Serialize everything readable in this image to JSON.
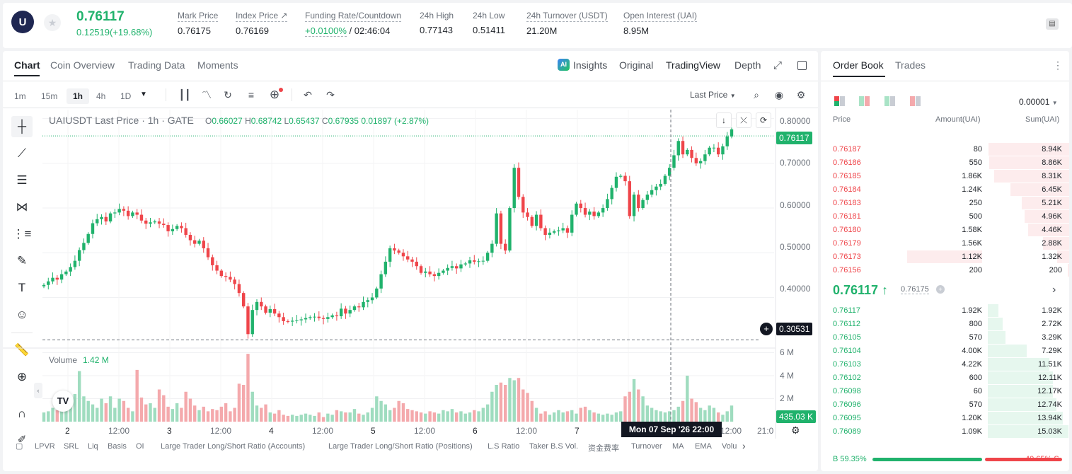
{
  "header": {
    "logo_text": "U",
    "last_price": "0.76117",
    "change": "0.12519(+19.68%)",
    "stats": [
      {
        "label": "Mark Price",
        "value": "0.76175"
      },
      {
        "label": "Index Price ↗",
        "value": "0.76169"
      },
      {
        "label": "Funding Rate/Countdown",
        "value_rate": "+0.0100%",
        "value_countdown": " / 02:46:04"
      },
      {
        "label": "24h High",
        "value": "0.77143"
      },
      {
        "label": "24h Low",
        "value": "0.51411"
      },
      {
        "label": "24h Turnover (USDT)",
        "value": "21.20M"
      },
      {
        "label": "Open Interest (UAI)",
        "value": "8.95M"
      }
    ]
  },
  "chart_tabs": [
    "Chart",
    "Coin Overview",
    "Trading Data",
    "Moments"
  ],
  "view_tabs": {
    "insights": "Insights",
    "original": "Original",
    "tradingview": "TradingView",
    "depth": "Depth"
  },
  "timeframes": [
    "1m",
    "15m",
    "1h",
    "4h",
    "1D"
  ],
  "active_timeframe": "1h",
  "price_type": "Last Price",
  "legend": {
    "title": "UAIUSDT Last Price · 1h · GATE",
    "o": "0.66027",
    "h": "0.68742",
    "l": "0.65437",
    "c": "0.67935",
    "change": "0.01897 (+2.87%)"
  },
  "volume_legend": {
    "label": "Volume",
    "value": "1.42 M"
  },
  "crosshair_label": "Mon 07 Sep '26   22:00",
  "price_tags": {
    "last": "0.76117",
    "cross": "0.30531",
    "volume": "435.03 K"
  },
  "indicators": [
    "LPVR",
    "SRL",
    "Liq",
    "Basis",
    "OI",
    "Large Trader Long/Short Ratio (Accounts)",
    "Large Trader Long/Short Ratio (Positions)",
    "L.S Ratio",
    "Taker B.S Vol.",
    "资金费率",
    "Turnover",
    "MA",
    "EMA",
    "Volu"
  ],
  "chart_data": {
    "type": "candlestick",
    "y_ticks": [
      "0.80000",
      "0.70000",
      "0.60000",
      "0.50000",
      "0.40000"
    ],
    "ylim": [
      0.29,
      0.82
    ],
    "x_ticks": [
      "2",
      "12:00",
      "3",
      "12:00",
      "4",
      "12:00",
      "5",
      "12:00",
      "6",
      "12:00",
      "7",
      "12:00",
      "21:0"
    ],
    "volume_ticks": [
      "6 M",
      "4 M",
      "2 M"
    ],
    "volume_ylim": [
      0,
      6.4
    ],
    "close_start": 0.425,
    "closes": [
      0.428,
      0.436,
      0.444,
      0.44,
      0.452,
      0.458,
      0.468,
      0.482,
      0.506,
      0.522,
      0.542,
      0.566,
      0.575,
      0.58,
      0.57,
      0.588,
      0.59,
      0.598,
      0.594,
      0.582,
      0.59,
      0.585,
      0.572,
      0.565,
      0.568,
      0.57,
      0.565,
      0.562,
      0.548,
      0.553,
      0.56,
      0.555,
      0.54,
      0.528,
      0.52,
      0.527,
      0.51,
      0.49,
      0.472,
      0.46,
      0.448,
      0.446,
      0.44,
      0.43,
      0.41,
      0.38,
      0.318,
      0.372,
      0.39,
      0.38,
      0.366,
      0.374,
      0.364,
      0.356,
      0.347,
      0.346,
      0.348,
      0.349,
      0.351,
      0.354,
      0.356,
      0.357,
      0.354,
      0.352,
      0.356,
      0.36,
      0.358,
      0.375,
      0.364,
      0.372,
      0.38,
      0.378,
      0.39,
      0.394,
      0.4,
      0.42,
      0.452,
      0.48,
      0.51,
      0.505,
      0.5,
      0.492,
      0.485,
      0.48,
      0.47,
      0.455,
      0.458,
      0.452,
      0.448,
      0.455,
      0.46,
      0.466,
      0.47,
      0.465,
      0.474,
      0.476,
      0.483,
      0.48,
      0.481,
      0.482,
      0.5,
      0.52,
      0.588,
      0.52,
      0.505,
      0.6,
      0.69,
      0.625,
      0.59,
      0.58,
      0.56,
      0.585,
      0.555,
      0.54,
      0.545,
      0.548,
      0.55,
      0.555,
      0.545,
      0.585,
      0.61,
      0.6,
      0.585,
      0.592,
      0.582,
      0.59,
      0.6,
      0.62,
      0.645,
      0.67,
      0.672,
      0.66,
      0.582,
      0.63,
      0.6,
      0.618,
      0.63,
      0.64,
      0.648,
      0.654,
      0.672,
      0.69,
      0.718,
      0.75,
      0.72,
      0.73,
      0.712,
      0.7,
      0.705,
      0.72,
      0.735,
      0.735,
      0.72,
      0.738,
      0.76,
      0.776
    ],
    "volumes": [
      0.8,
      0.9,
      1.2,
      1.0,
      1.4,
      1.6,
      1.8,
      2.4,
      4.4,
      2.2,
      1.8,
      1.5,
      1.2,
      2.0,
      1.6,
      2.2,
      1.2,
      2.0,
      1.8,
      1.2,
      0.9,
      4.5,
      2.1,
      1.5,
      1.6,
      1.2,
      2.8,
      2.3,
      1.3,
      1.1,
      1.6,
      1.2,
      2.6,
      2.0,
      1.4,
      1.0,
      1.3,
      0.9,
      1.1,
      1.0,
      1.3,
      1.6,
      0.9,
      1.2,
      3.3,
      3.2,
      5.9,
      2.6,
      1.4,
      1.2,
      1.5,
      0.8,
      0.7,
      1.0,
      0.6,
      0.5,
      0.6,
      0.5,
      0.6,
      0.7,
      0.6,
      0.5,
      0.8,
      0.4,
      0.7,
      0.6,
      1.0,
      0.9,
      0.8,
      0.8,
      1.1,
      0.7,
      0.6,
      0.8,
      1.2,
      2.2,
      1.8,
      1.5,
      1.0,
      1.2,
      1.8,
      1.6,
      1.1,
      1.0,
      0.9,
      0.8,
      0.7,
      0.9,
      0.8,
      0.7,
      1.0,
      0.9,
      1.1,
      0.8,
      0.9,
      0.7,
      0.8,
      1.0,
      0.9,
      1.2,
      1.5,
      2.6,
      3.2,
      3.4,
      3.2,
      3.8,
      3.6,
      3.8,
      2.8,
      2.5,
      1.8,
      1.2,
      0.7,
      0.9,
      0.6,
      0.8,
      1.0,
      0.8,
      0.9,
      1.0,
      0.7,
      1.2,
      1.3,
      1.0,
      0.8,
      0.7,
      0.6,
      0.7,
      0.6,
      0.8,
      0.9,
      2.2,
      2.6,
      3.7,
      2.8,
      2.2,
      1.4,
      1.2,
      1.0,
      0.9,
      0.8,
      0.9,
      1.0,
      1.3,
      1.8,
      4.0,
      2.0,
      1.7,
      1.2,
      1.0,
      1.4,
      1.2,
      0.8,
      0.6,
      0.9,
      1.4,
      1.8,
      0.5
    ]
  },
  "orderbook": {
    "tabs": [
      "Order Book",
      "Trades"
    ],
    "precision": "0.00001",
    "headers": [
      "Price",
      "Amount(UAI)",
      "Sum(UAI)"
    ],
    "asks": [
      {
        "price": "0.76187",
        "amount": "80",
        "sum": "8.94K",
        "depth": 0.99,
        "bar_amount": 0
      },
      {
        "price": "0.76186",
        "amount": "550",
        "sum": "8.86K",
        "depth": 0.98,
        "bar_amount": 0
      },
      {
        "price": "0.76185",
        "amount": "1.86K",
        "sum": "8.31K",
        "depth": 0.92,
        "bar_amount": 0
      },
      {
        "price": "0.76184",
        "amount": "1.24K",
        "sum": "6.45K",
        "depth": 0.72,
        "bar_amount": 0
      },
      {
        "price": "0.76183",
        "amount": "250",
        "sum": "5.21K",
        "depth": 0.58,
        "bar_amount": 0
      },
      {
        "price": "0.76181",
        "amount": "500",
        "sum": "4.96K",
        "depth": 0.55,
        "bar_amount": 0
      },
      {
        "price": "0.76180",
        "amount": "1.58K",
        "sum": "4.46K",
        "depth": 0.5,
        "bar_amount": 0
      },
      {
        "price": "0.76179",
        "amount": "1.56K",
        "sum": "2.88K",
        "depth": 0.32,
        "bar_amount": 0
      },
      {
        "price": "0.76173",
        "amount": "1.12K",
        "sum": "1.32K",
        "depth": 0.15,
        "bar_amount": 1
      },
      {
        "price": "0.76156",
        "amount": "200",
        "sum": "200",
        "depth": 0.02,
        "bar_amount": 0
      }
    ],
    "mid_price": "0.76117 ↑",
    "mark_price": "0.76175",
    "bids": [
      {
        "price": "0.76117",
        "amount": "1.92K",
        "sum": "1.92K",
        "depth": 0.13
      },
      {
        "price": "0.76112",
        "amount": "800",
        "sum": "2.72K",
        "depth": 0.18
      },
      {
        "price": "0.76105",
        "amount": "570",
        "sum": "3.29K",
        "depth": 0.22
      },
      {
        "price": "0.76104",
        "amount": "4.00K",
        "sum": "7.29K",
        "depth": 0.48
      },
      {
        "price": "0.76103",
        "amount": "4.22K",
        "sum": "11.51K",
        "depth": 0.76
      },
      {
        "price": "0.76102",
        "amount": "600",
        "sum": "12.11K",
        "depth": 0.8
      },
      {
        "price": "0.76098",
        "amount": "60",
        "sum": "12.17K",
        "depth": 0.8
      },
      {
        "price": "0.76096",
        "amount": "570",
        "sum": "12.74K",
        "depth": 0.84
      },
      {
        "price": "0.76095",
        "amount": "1.20K",
        "sum": "13.94K",
        "depth": 0.92
      },
      {
        "price": "0.76089",
        "amount": "1.09K",
        "sum": "15.03K",
        "depth": 0.99
      }
    ],
    "buy_label": "B 59.35%",
    "sell_label": "40.65% S",
    "buy_ratio": 0.5935
  },
  "colors": {
    "up": "#20b26c",
    "down": "#ef454a",
    "up_vol": "#9fdcbf",
    "down_vol": "#f4a9ac"
  }
}
